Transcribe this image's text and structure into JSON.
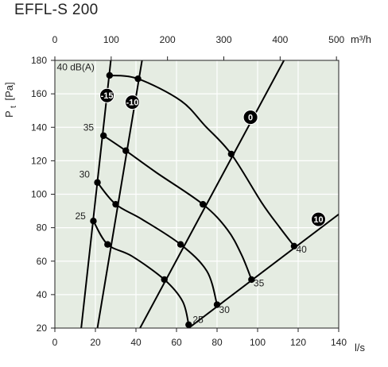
{
  "title": "EFFL-S 200",
  "chart_data": {
    "type": "line",
    "title": "EFFL-S 200",
    "x_axis": {
      "label": "l/s",
      "range": [
        0,
        140
      ],
      "ticks": [
        0,
        20,
        40,
        60,
        80,
        100,
        120,
        140
      ]
    },
    "x2_axis": {
      "label": "m³/h",
      "range": [
        0,
        504
      ],
      "ticks": [
        0,
        100,
        200,
        300,
        400,
        500
      ]
    },
    "y_axis": {
      "label": "Pt [Pa]",
      "label_main": "P",
      "label_sub": "t",
      "label_unit": "[Pa]",
      "range": [
        20,
        180
      ],
      "ticks": [
        20,
        40,
        60,
        80,
        100,
        120,
        140,
        160,
        180
      ]
    },
    "grid": true,
    "system_curves": [
      {
        "marker": "-15",
        "points": [
          [
            13,
            20
          ],
          [
            27.6,
            180
          ]
        ]
      },
      {
        "marker": "-10",
        "points": [
          [
            21,
            20
          ],
          [
            43,
            180
          ]
        ]
      },
      {
        "marker": "0",
        "points": [
          [
            42,
            20
          ],
          [
            113,
            180
          ]
        ]
      },
      {
        "marker": "10",
        "points": [
          [
            66,
            20
          ],
          [
            140,
            88
          ]
        ]
      }
    ],
    "sound_curves": [
      {
        "label": "40 dB(A)",
        "points": [
          [
            27,
            171
          ],
          [
            41,
            169
          ],
          [
            62,
            156
          ],
          [
            74,
            141
          ],
          [
            87,
            124
          ],
          [
            102,
            95
          ],
          [
            111,
            80
          ],
          [
            118,
            69
          ]
        ]
      },
      {
        "label": "35",
        "points": [
          [
            24,
            135
          ],
          [
            35,
            126
          ],
          [
            50,
            113
          ],
          [
            73,
            94
          ],
          [
            85,
            79
          ],
          [
            92,
            64
          ],
          [
            97,
            49
          ]
        ]
      },
      {
        "label": "30",
        "points": [
          [
            21,
            107
          ],
          [
            30,
            94
          ],
          [
            43,
            85
          ],
          [
            62,
            70
          ],
          [
            75,
            54
          ],
          [
            80,
            34
          ]
        ]
      },
      {
        "label": "25",
        "points": [
          [
            19,
            84
          ],
          [
            26,
            70
          ],
          [
            38,
            63
          ],
          [
            54,
            49
          ],
          [
            63,
            36
          ],
          [
            66,
            22
          ]
        ]
      }
    ],
    "operating_points": [
      [
        27,
        171
      ],
      [
        41,
        169
      ],
      [
        87,
        124
      ],
      [
        118,
        69
      ],
      [
        24,
        135
      ],
      [
        35,
        126
      ],
      [
        73,
        94
      ],
      [
        97,
        49
      ],
      [
        21,
        107
      ],
      [
        30,
        94
      ],
      [
        62,
        70
      ],
      [
        80,
        34
      ],
      [
        19,
        84
      ],
      [
        26,
        70
      ],
      [
        54,
        49
      ],
      [
        66,
        22
      ]
    ],
    "curve_labels": [
      {
        "text": "40 dB(A)",
        "at": [
          1,
          174
        ]
      },
      {
        "text": "35",
        "at": [
          14,
          138
        ]
      },
      {
        "text": "30",
        "at": [
          12,
          110
        ]
      },
      {
        "text": "25",
        "at": [
          10,
          85
        ]
      },
      {
        "text": "40",
        "at": [
          119,
          65
        ]
      },
      {
        "text": "35",
        "at": [
          98,
          45
        ]
      },
      {
        "text": "30",
        "at": [
          81,
          29
        ]
      },
      {
        "text": "25",
        "at": [
          68,
          23
        ]
      }
    ],
    "markers": [
      {
        "text": "-15",
        "at": [
          25.7,
          159
        ]
      },
      {
        "text": "-10",
        "at": [
          38.2,
          155
        ]
      },
      {
        "text": "0",
        "at": [
          96.5,
          146
        ]
      },
      {
        "text": "10",
        "at": [
          130,
          85
        ]
      }
    ],
    "colors": {
      "plot_background": "#e5ece2",
      "grid": "#ffffff",
      "curve": "#000000",
      "marker_fill": "#000000"
    }
  }
}
